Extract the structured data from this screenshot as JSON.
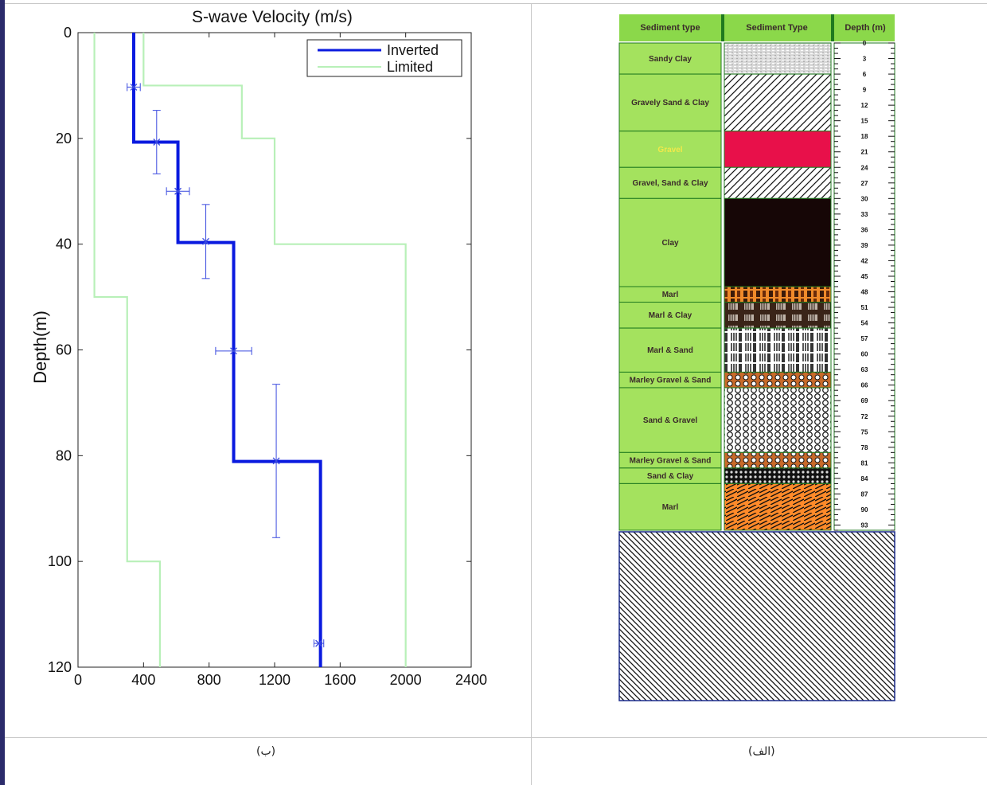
{
  "captions": {
    "left": "(ب)",
    "right": "(الف)"
  },
  "chart_data": {
    "type": "line",
    "title": "S-wave Velocity (m/s)",
    "ylabel": "Depth(m)",
    "xlim": [
      0,
      2400
    ],
    "ylim": [
      0,
      120
    ],
    "y_reversed": true,
    "xticks": [
      "0",
      "400",
      "800",
      "1200",
      "1600",
      "2000",
      "2400"
    ],
    "yticks": [
      "0",
      "20",
      "40",
      "60",
      "80",
      "100",
      "120"
    ],
    "legend_position": "top-right",
    "series": [
      {
        "name": "Inverted",
        "color": "#0a1adf",
        "x": [
          340,
          340,
          610,
          610,
          950,
          950,
          1480,
          1480
        ],
        "y": [
          0,
          20.7,
          20.7,
          39.7,
          39.7,
          81.1,
          81.1,
          120
        ]
      },
      {
        "name": "Limited",
        "color": "#b8f0b8",
        "x": [
          400,
          400,
          1000,
          1000,
          1200,
          1200,
          2000,
          2000
        ],
        "y": [
          0,
          10,
          10,
          20,
          20,
          40,
          40,
          120
        ]
      },
      {
        "name": "",
        "color": "#b8f0b8",
        "x": [
          100,
          100,
          300,
          300,
          500,
          500
        ],
        "y": [
          0,
          50,
          50,
          100,
          100,
          120
        ]
      }
    ],
    "error_points": [
      {
        "x": 340,
        "y": 10.3,
        "xerr": 40,
        "yerr": 0
      },
      {
        "x": 480,
        "y": 20.7,
        "xerr": 0,
        "yerr": 6
      },
      {
        "x": 610,
        "y": 30,
        "xerr": 70,
        "yerr": 0
      },
      {
        "x": 780,
        "y": 39.5,
        "xerr": 0,
        "yerr": 7
      },
      {
        "x": 950,
        "y": 60.2,
        "xerr": 110,
        "yerr": 0
      },
      {
        "x": 1210,
        "y": 81,
        "xerr": 0,
        "yerr": 14.5
      },
      {
        "x": 1470,
        "y": 115.5,
        "xerr": 30,
        "yerr": 0
      }
    ]
  },
  "column": {
    "headers": [
      "Sediment type",
      "Sediment Type",
      "Depth (m)"
    ],
    "max_depth": 94,
    "layers": [
      {
        "name": "Sandy Clay",
        "top": 0,
        "bottom": 6,
        "pattern": "sand",
        "label_color": "#3a2a2a"
      },
      {
        "name": "Gravely Sand & Clay",
        "top": 6,
        "bottom": 17,
        "pattern": "hatch-white",
        "label_color": "#3a2a2a"
      },
      {
        "name": "Gravel",
        "top": 17,
        "bottom": 24,
        "pattern": "red",
        "label_color": "#f2e94a"
      },
      {
        "name": "Gravel, Sand & Clay",
        "top": 24,
        "bottom": 30,
        "pattern": "hatch-white",
        "label_color": "#3a2a2a"
      },
      {
        "name": "Clay",
        "top": 30,
        "bottom": 47,
        "pattern": "black",
        "label_color": "#3a2a2a"
      },
      {
        "name": "Marl",
        "top": 47,
        "bottom": 50,
        "pattern": "orange-brick",
        "label_color": "#3a2a2a"
      },
      {
        "name": "Marl & Clay",
        "top": 50,
        "bottom": 55,
        "pattern": "dark-brick",
        "label_color": "#3a2a2a"
      },
      {
        "name": "Marl & Sand",
        "top": 55,
        "bottom": 63.5,
        "pattern": "white-brick",
        "label_color": "#3a2a2a"
      },
      {
        "name": "Marley Gravel & Sand",
        "top": 63.5,
        "bottom": 66.5,
        "pattern": "orange-circles",
        "label_color": "#3a2a2a"
      },
      {
        "name": "Sand & Gravel",
        "top": 66.5,
        "bottom": 79,
        "pattern": "circles",
        "label_color": "#3a2a2a"
      },
      {
        "name": "Marley Gravel & Sand",
        "top": 79,
        "bottom": 82,
        "pattern": "orange-circles",
        "label_color": "#3a2a2a"
      },
      {
        "name": "Sand & Clay",
        "top": 82,
        "bottom": 85,
        "pattern": "dots-dark",
        "label_color": "#3a2a2a"
      },
      {
        "name": "Marl",
        "top": 85,
        "bottom": 94,
        "pattern": "orange-diag",
        "label_color": "#3a2a2a"
      }
    ],
    "depth_labels": [
      "0",
      "3",
      "6",
      "9",
      "12",
      "15",
      "18",
      "21",
      "24",
      "27",
      "30",
      "33",
      "36",
      "39",
      "42",
      "45",
      "48",
      "51",
      "54",
      "57",
      "60",
      "63",
      "66",
      "69",
      "72",
      "75",
      "78",
      "81",
      "84",
      "87",
      "90",
      "93"
    ]
  }
}
